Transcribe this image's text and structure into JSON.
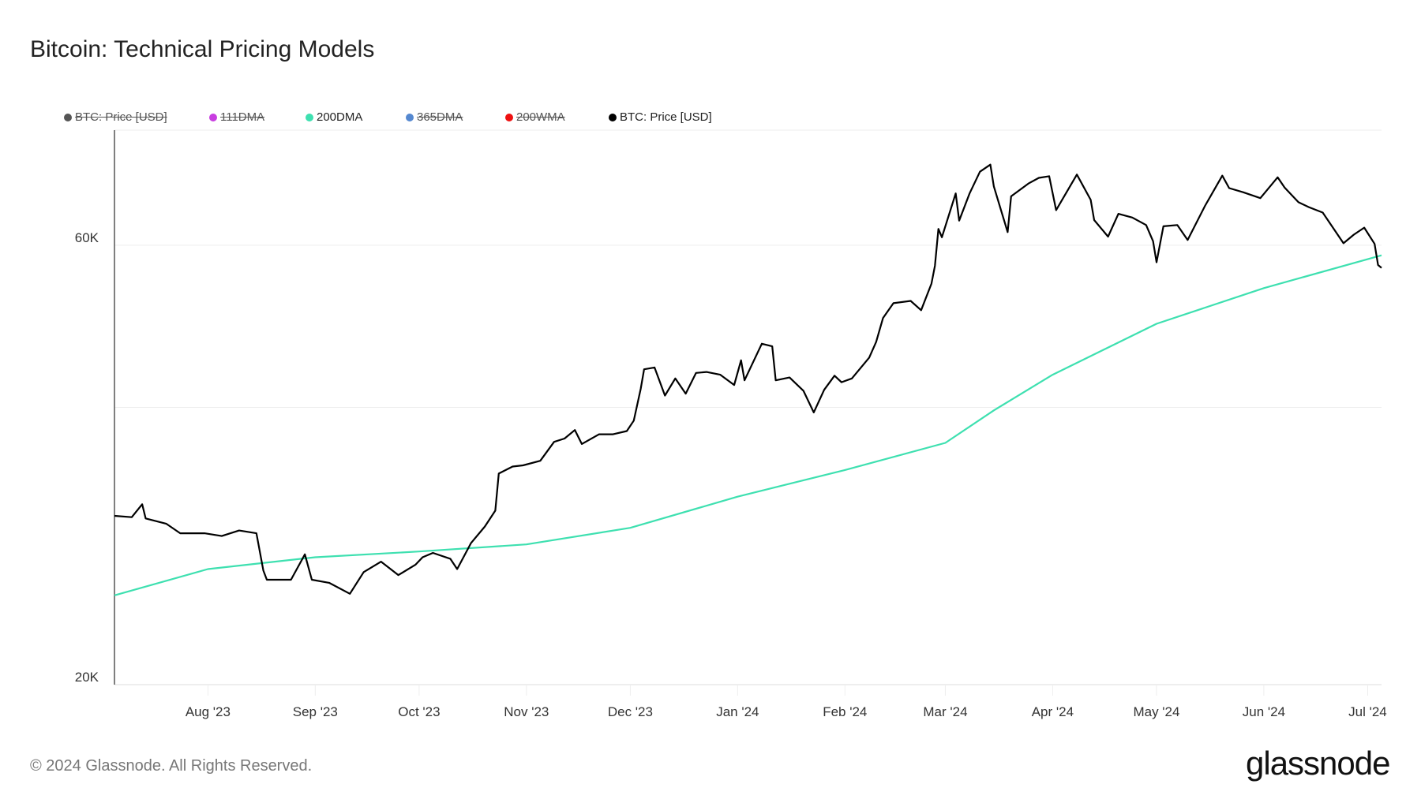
{
  "title": "Bitcoin: Technical Pricing Models",
  "legend": [
    {
      "label": "BTC: Price [USD]",
      "color": "#555555",
      "active": false
    },
    {
      "label": "111DMA",
      "color": "#c83ee0",
      "active": false
    },
    {
      "label": "200DMA",
      "color": "#3ee0b0",
      "active": true
    },
    {
      "label": "365DMA",
      "color": "#5588d0",
      "active": false
    },
    {
      "label": "200WMA",
      "color": "#ee1111",
      "active": false
    },
    {
      "label": "BTC: Price [USD]",
      "color": "#000000",
      "active": true
    }
  ],
  "footer": "© 2024 Glassnode. All Rights Reserved.",
  "logo": "glassnode",
  "chart_data": {
    "type": "line",
    "title": "Bitcoin: Technical Pricing Models",
    "xlabel": "",
    "ylabel": "",
    "y_scale": "log",
    "ylim": [
      20000,
      80000
    ],
    "xlim": [
      "2023-07-05",
      "2024-07-05"
    ],
    "grid": true,
    "legend_position": "top-left",
    "y_ticks": [
      {
        "value": 20000,
        "label": "20K"
      },
      {
        "value": 40000,
        "label": ""
      },
      {
        "value": 60000,
        "label": "60K"
      }
    ],
    "x_ticks": [
      {
        "date": "2023-08-01",
        "label": "Aug '23"
      },
      {
        "date": "2023-09-01",
        "label": "Sep '23"
      },
      {
        "date": "2023-10-01",
        "label": "Oct '23"
      },
      {
        "date": "2023-11-01",
        "label": "Nov '23"
      },
      {
        "date": "2023-12-01",
        "label": "Dec '23"
      },
      {
        "date": "2024-01-01",
        "label": "Jan '24"
      },
      {
        "date": "2024-02-01",
        "label": "Feb '24"
      },
      {
        "date": "2024-03-01",
        "label": "Mar '24"
      },
      {
        "date": "2024-04-01",
        "label": "Apr '24"
      },
      {
        "date": "2024-05-01",
        "label": "May '24"
      },
      {
        "date": "2024-06-01",
        "label": "Jun '24"
      },
      {
        "date": "2024-07-01",
        "label": "Jul '24"
      }
    ],
    "series": [
      {
        "name": "200DMA",
        "color": "#3ee0b0",
        "points": [
          [
            "2023-07-05",
            25000
          ],
          [
            "2023-08-01",
            26700
          ],
          [
            "2023-09-01",
            27500
          ],
          [
            "2023-10-01",
            27900
          ],
          [
            "2023-11-01",
            28400
          ],
          [
            "2023-12-01",
            29600
          ],
          [
            "2024-01-01",
            32000
          ],
          [
            "2024-02-01",
            34200
          ],
          [
            "2024-03-01",
            36600
          ],
          [
            "2024-03-15",
            39700
          ],
          [
            "2024-04-01",
            43400
          ],
          [
            "2024-05-01",
            49300
          ],
          [
            "2024-06-01",
            53900
          ],
          [
            "2024-07-05",
            58500
          ]
        ]
      },
      {
        "name": "BTC: Price [USD]",
        "color": "#000000",
        "points": [
          [
            "2023-07-05",
            30500
          ],
          [
            "2023-07-10",
            30400
          ],
          [
            "2023-07-13",
            31400
          ],
          [
            "2023-07-14",
            30300
          ],
          [
            "2023-07-20",
            29900
          ],
          [
            "2023-07-24",
            29200
          ],
          [
            "2023-07-31",
            29200
          ],
          [
            "2023-08-05",
            29000
          ],
          [
            "2023-08-10",
            29400
          ],
          [
            "2023-08-15",
            29200
          ],
          [
            "2023-08-17",
            26600
          ],
          [
            "2023-08-18",
            26000
          ],
          [
            "2023-08-25",
            26000
          ],
          [
            "2023-08-29",
            27700
          ],
          [
            "2023-08-31",
            26000
          ],
          [
            "2023-09-05",
            25800
          ],
          [
            "2023-09-11",
            25100
          ],
          [
            "2023-09-15",
            26500
          ],
          [
            "2023-09-20",
            27200
          ],
          [
            "2023-09-25",
            26300
          ],
          [
            "2023-09-30",
            27000
          ],
          [
            "2023-10-02",
            27500
          ],
          [
            "2023-10-05",
            27800
          ],
          [
            "2023-10-10",
            27400
          ],
          [
            "2023-10-12",
            26700
          ],
          [
            "2023-10-16",
            28500
          ],
          [
            "2023-10-20",
            29700
          ],
          [
            "2023-10-23",
            30900
          ],
          [
            "2023-10-24",
            33900
          ],
          [
            "2023-10-28",
            34500
          ],
          [
            "2023-10-31",
            34600
          ],
          [
            "2023-11-05",
            35000
          ],
          [
            "2023-11-09",
            36700
          ],
          [
            "2023-11-12",
            37000
          ],
          [
            "2023-11-15",
            37800
          ],
          [
            "2023-11-17",
            36500
          ],
          [
            "2023-11-22",
            37400
          ],
          [
            "2023-11-26",
            37400
          ],
          [
            "2023-11-30",
            37700
          ],
          [
            "2023-12-02",
            38700
          ],
          [
            "2023-12-04",
            41900
          ],
          [
            "2023-12-05",
            44000
          ],
          [
            "2023-12-08",
            44200
          ],
          [
            "2023-12-11",
            41200
          ],
          [
            "2023-12-14",
            43000
          ],
          [
            "2023-12-17",
            41400
          ],
          [
            "2023-12-20",
            43600
          ],
          [
            "2023-12-23",
            43700
          ],
          [
            "2023-12-27",
            43400
          ],
          [
            "2023-12-31",
            42300
          ],
          [
            "2024-01-02",
            45000
          ],
          [
            "2024-01-03",
            42800
          ],
          [
            "2024-01-08",
            46900
          ],
          [
            "2024-01-11",
            46600
          ],
          [
            "2024-01-12",
            42800
          ],
          [
            "2024-01-16",
            43100
          ],
          [
            "2024-01-20",
            41700
          ],
          [
            "2024-01-23",
            39500
          ],
          [
            "2024-01-26",
            41800
          ],
          [
            "2024-01-29",
            43300
          ],
          [
            "2024-01-31",
            42600
          ],
          [
            "2024-02-03",
            43000
          ],
          [
            "2024-02-08",
            45300
          ],
          [
            "2024-02-10",
            47100
          ],
          [
            "2024-02-12",
            50000
          ],
          [
            "2024-02-15",
            51900
          ],
          [
            "2024-02-20",
            52200
          ],
          [
            "2024-02-23",
            51000
          ],
          [
            "2024-02-26",
            54500
          ],
          [
            "2024-02-27",
            57000
          ],
          [
            "2024-02-28",
            62500
          ],
          [
            "2024-02-29",
            61200
          ],
          [
            "2024-03-04",
            68300
          ],
          [
            "2024-03-05",
            63800
          ],
          [
            "2024-03-08",
            68300
          ],
          [
            "2024-03-11",
            72100
          ],
          [
            "2024-03-14",
            73400
          ],
          [
            "2024-03-15",
            69500
          ],
          [
            "2024-03-19",
            62000
          ],
          [
            "2024-03-20",
            67800
          ],
          [
            "2024-03-25",
            70000
          ],
          [
            "2024-03-28",
            71000
          ],
          [
            "2024-03-31",
            71300
          ],
          [
            "2024-04-02",
            65500
          ],
          [
            "2024-04-08",
            71600
          ],
          [
            "2024-04-12",
            67200
          ],
          [
            "2024-04-13",
            63900
          ],
          [
            "2024-04-17",
            61300
          ],
          [
            "2024-04-20",
            64900
          ],
          [
            "2024-04-24",
            64300
          ],
          [
            "2024-04-28",
            63100
          ],
          [
            "2024-04-30",
            60600
          ],
          [
            "2024-05-01",
            57500
          ],
          [
            "2024-05-03",
            62900
          ],
          [
            "2024-05-07",
            63100
          ],
          [
            "2024-05-10",
            60800
          ],
          [
            "2024-05-15",
            66200
          ],
          [
            "2024-05-20",
            71400
          ],
          [
            "2024-05-22",
            69200
          ],
          [
            "2024-05-26",
            68500
          ],
          [
            "2024-05-31",
            67500
          ],
          [
            "2024-06-05",
            71100
          ],
          [
            "2024-06-07",
            69300
          ],
          [
            "2024-06-11",
            66800
          ],
          [
            "2024-06-14",
            66000
          ],
          [
            "2024-06-18",
            65100
          ],
          [
            "2024-06-24",
            60300
          ],
          [
            "2024-06-27",
            61600
          ],
          [
            "2024-06-30",
            62700
          ],
          [
            "2024-07-03",
            60200
          ],
          [
            "2024-07-04",
            57100
          ],
          [
            "2024-07-05",
            56700
          ]
        ]
      }
    ]
  }
}
